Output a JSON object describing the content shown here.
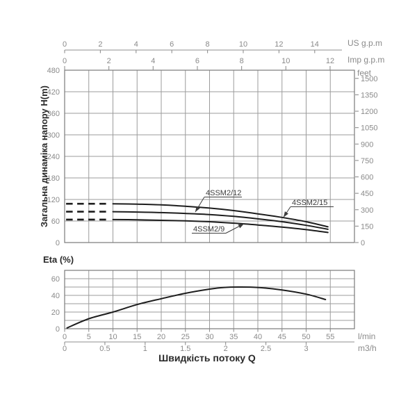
{
  "page": {
    "background": "#ffffff",
    "line_color": "#1d1d1d",
    "grid_color": "#9b9b9b",
    "text_color": "#8a8a8a"
  },
  "chart_data": [
    {
      "type": "line",
      "ylabel": "Загальна динаміка напору H(m)",
      "ylim": [
        0,
        480
      ],
      "y_ticks": [
        480,
        420,
        360,
        300,
        240,
        180,
        120,
        60,
        0
      ],
      "x_grid_lmin": {
        "min": 0,
        "max": 60,
        "step": 5
      },
      "top_axis_us": {
        "unit": "US g.p.m",
        "ticks": [
          0,
          2,
          4,
          6,
          8,
          10,
          12,
          14
        ]
      },
      "top_axis_imp": {
        "unit": "Imp g.p.m",
        "ticks": [
          0,
          2,
          4,
          6,
          8,
          10,
          12
        ]
      },
      "right_axis": {
        "unit": "feet",
        "ticks": [
          1500,
          1350,
          1200,
          1050,
          900,
          750,
          600,
          450,
          300,
          150,
          0
        ]
      },
      "legend_position": "inline-callouts",
      "grid": true,
      "series": [
        {
          "name": "4SSM2/15",
          "dashed_head": {
            "q": [
              0.3,
              9.2
            ],
            "h": 108
          },
          "points": [
            [
              10,
              108
            ],
            [
              15,
              107
            ],
            [
              20,
              105
            ],
            [
              25,
              101
            ],
            [
              30,
              96
            ],
            [
              35,
              89
            ],
            [
              40,
              80
            ],
            [
              45,
              70
            ],
            [
              50,
              58
            ],
            [
              54.5,
              44
            ]
          ]
        },
        {
          "name": "4SSM2/12",
          "dashed_head": {
            "q": [
              0.3,
              9.2
            ],
            "h": 86
          },
          "points": [
            [
              10,
              86
            ],
            [
              15,
              85
            ],
            [
              20,
              83.5
            ],
            [
              25,
              81
            ],
            [
              30,
              78
            ],
            [
              35,
              73
            ],
            [
              40,
              66
            ],
            [
              45,
              58
            ],
            [
              50,
              48
            ],
            [
              54.5,
              37
            ]
          ]
        },
        {
          "name": "4SSM2/9",
          "dashed_head": {
            "q": [
              0.3,
              9.2
            ],
            "h": 64
          },
          "points": [
            [
              10,
              64
            ],
            [
              15,
              63.5
            ],
            [
              20,
              62
            ],
            [
              25,
              60.5
            ],
            [
              30,
              58
            ],
            [
              35,
              54
            ],
            [
              40,
              49
            ],
            [
              45,
              43
            ],
            [
              50,
              36
            ],
            [
              54.5,
              28
            ]
          ]
        }
      ]
    },
    {
      "type": "line",
      "title": "Eta (%)",
      "ylim": [
        0,
        70
      ],
      "y_ticks": [
        60,
        40,
        20,
        0
      ],
      "grid": true,
      "series": [
        {
          "name": "Eta",
          "points": [
            [
              0.5,
              1
            ],
            [
              5,
              12
            ],
            [
              10,
              20
            ],
            [
              15,
              29
            ],
            [
              20,
              36
            ],
            [
              25,
              42.5
            ],
            [
              30,
              47.5
            ],
            [
              33,
              49.5
            ],
            [
              36,
              50
            ],
            [
              40,
              49.5
            ],
            [
              45,
              46.5
            ],
            [
              50,
              41.5
            ],
            [
              54,
              35
            ]
          ]
        }
      ],
      "x_axis_lmin": {
        "unit": "l/min",
        "ticks": [
          0,
          5,
          10,
          15,
          20,
          25,
          30,
          35,
          40,
          45,
          50,
          55
        ]
      },
      "x_axis_m3h": {
        "unit": "m3/h",
        "ticks": [
          0,
          0.5,
          1,
          1.5,
          2,
          2.5,
          3
        ]
      },
      "xlabel": "Швидкість потоку Q"
    }
  ]
}
